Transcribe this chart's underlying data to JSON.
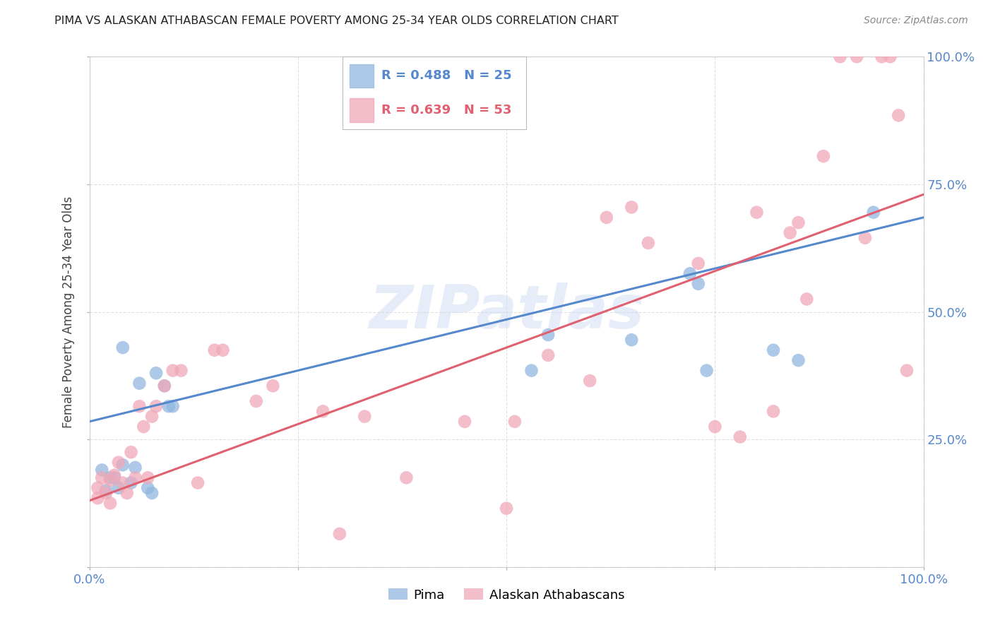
{
  "title": "PIMA VS ALASKAN ATHABASCAN FEMALE POVERTY AMONG 25-34 YEAR OLDS CORRELATION CHART",
  "source": "Source: ZipAtlas.com",
  "ylabel": "Female Poverty Among 25-34 Year Olds",
  "xlim": [
    0,
    1
  ],
  "ylim": [
    0,
    1
  ],
  "pima_color": "#92b8e0",
  "athabascan_color": "#f0a8b8",
  "pima_line_color": "#5588cc",
  "athabascan_line_color": "#e06070",
  "legend_text_blue": "#5588cc",
  "legend_text_pink": "#e06070",
  "pima_R": 0.488,
  "pima_N": 25,
  "athabascan_R": 0.639,
  "athabascan_N": 53,
  "background_color": "#ffffff",
  "grid_color": "#dddddd",
  "watermark": "ZIPatlas",
  "pima_x": [
    0.015,
    0.02,
    0.025,
    0.03,
    0.035,
    0.04,
    0.04,
    0.05,
    0.055,
    0.06,
    0.07,
    0.075,
    0.08,
    0.09,
    0.095,
    0.1,
    0.53,
    0.55,
    0.65,
    0.72,
    0.73,
    0.74,
    0.82,
    0.85,
    0.94
  ],
  "pima_y": [
    0.19,
    0.15,
    0.175,
    0.175,
    0.155,
    0.43,
    0.2,
    0.165,
    0.195,
    0.36,
    0.155,
    0.145,
    0.38,
    0.355,
    0.315,
    0.315,
    0.385,
    0.455,
    0.445,
    0.575,
    0.555,
    0.385,
    0.425,
    0.405,
    0.695
  ],
  "athabascan_x": [
    0.01,
    0.01,
    0.015,
    0.02,
    0.025,
    0.025,
    0.03,
    0.035,
    0.04,
    0.045,
    0.05,
    0.055,
    0.06,
    0.065,
    0.07,
    0.075,
    0.08,
    0.09,
    0.1,
    0.11,
    0.13,
    0.15,
    0.16,
    0.2,
    0.22,
    0.28,
    0.3,
    0.33,
    0.38,
    0.45,
    0.5,
    0.51,
    0.55,
    0.6,
    0.62,
    0.65,
    0.67,
    0.73,
    0.75,
    0.78,
    0.8,
    0.82,
    0.84,
    0.85,
    0.86,
    0.88,
    0.9,
    0.92,
    0.93,
    0.95,
    0.96,
    0.97,
    0.98
  ],
  "athabascan_y": [
    0.155,
    0.135,
    0.175,
    0.145,
    0.125,
    0.17,
    0.18,
    0.205,
    0.165,
    0.145,
    0.225,
    0.175,
    0.315,
    0.275,
    0.175,
    0.295,
    0.315,
    0.355,
    0.385,
    0.385,
    0.165,
    0.425,
    0.425,
    0.325,
    0.355,
    0.305,
    0.065,
    0.295,
    0.175,
    0.285,
    0.115,
    0.285,
    0.415,
    0.365,
    0.685,
    0.705,
    0.635,
    0.595,
    0.275,
    0.255,
    0.695,
    0.305,
    0.655,
    0.675,
    0.525,
    0.805,
    1.0,
    1.0,
    0.645,
    1.0,
    1.0,
    0.885,
    0.385
  ],
  "pima_intercept": 0.285,
  "pima_slope": 0.4,
  "ath_intercept": 0.13,
  "ath_slope": 0.6
}
